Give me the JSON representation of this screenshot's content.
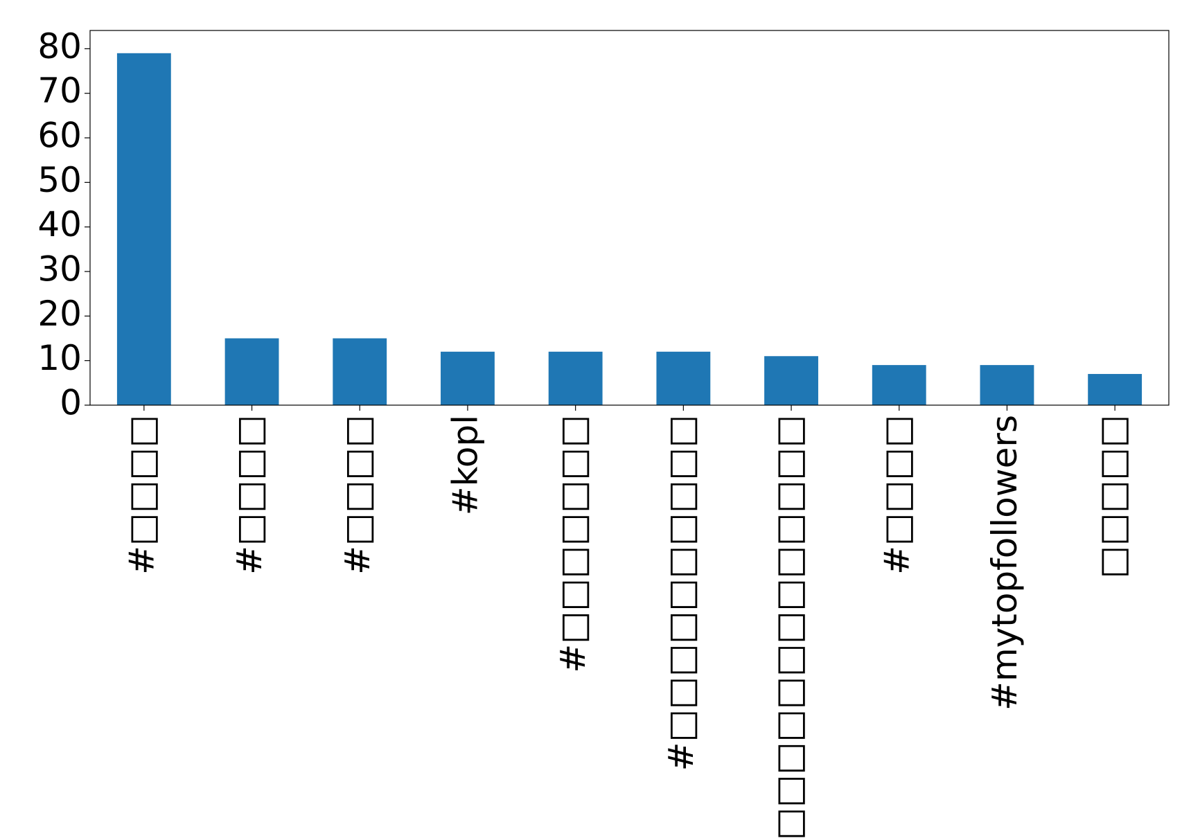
{
  "chart_data": {
    "type": "bar",
    "categories": [
      "#□□□□",
      "#□□□□",
      "#□□□□",
      "#kopl",
      "#□□□□□□□",
      "#□□□□□□□□□□",
      "#□□□□□□□□□□□□□",
      "#□□□□",
      "#mytopfollowers",
      "□□□□□"
    ],
    "values": [
      79,
      15,
      15,
      12,
      12,
      12,
      11,
      9,
      9,
      7
    ],
    "color": "#1f77b4",
    "ylim": [
      0,
      84.1
    ],
    "yticks": [
      0,
      10,
      20,
      30,
      40,
      50,
      60,
      70,
      80
    ],
    "grid": false
  }
}
